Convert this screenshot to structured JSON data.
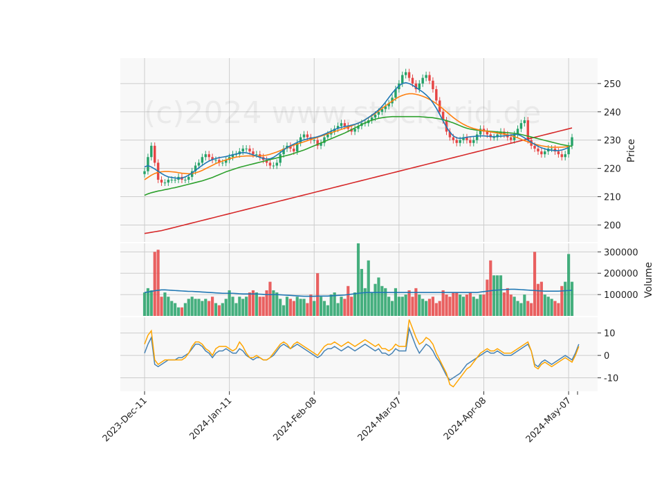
{
  "chart_data": {
    "type": "candlestick",
    "watermark": "(c)2024 www.stockgrid.de",
    "x_ticks": [
      "2023-Dec-11",
      "2024-Jan-11",
      "2024-Feb-08",
      "2024-Mar-07",
      "2024-Apr-08",
      "2024-May-07"
    ],
    "colors": {
      "up": "#26a269",
      "down": "#e64545",
      "ma_fast": "#1f77b4",
      "ma_mid": "#ff7f0e",
      "ma_slow": "#2ca02c",
      "ma_long": "#d62728",
      "vol_ma": "#1f77b4",
      "osc_a": "#4682b4",
      "osc_b": "#ffa500",
      "panel_bg": "#f8f8f8",
      "grid": "#cccccc"
    },
    "price_panel": {
      "ylabel": "Price",
      "yticks": [
        200,
        210,
        220,
        230,
        240,
        250
      ],
      "ylim": [
        194,
        259
      ],
      "close": [
        219,
        224,
        228,
        222,
        216,
        215,
        215,
        216,
        216,
        216,
        217,
        216,
        216,
        217,
        219,
        221,
        222,
        224,
        225,
        224,
        223,
        223,
        222,
        222,
        223,
        224,
        225,
        225,
        226,
        227,
        227,
        226,
        225,
        225,
        224,
        223,
        222,
        221,
        221,
        222,
        225,
        227,
        228,
        227,
        226,
        229,
        231,
        232,
        231,
        230,
        230,
        228,
        229,
        231,
        232,
        233,
        234,
        235,
        236,
        235,
        234,
        233,
        234,
        235,
        236,
        236,
        237,
        238,
        239,
        240,
        241,
        242,
        243,
        245,
        248,
        250,
        253,
        254,
        252,
        250,
        248,
        250,
        252,
        253,
        251,
        248,
        244,
        240,
        237,
        233,
        231,
        230,
        229,
        230,
        231,
        230,
        229,
        230,
        232,
        234,
        233,
        232,
        231,
        231,
        232,
        233,
        232,
        231,
        230,
        232,
        234,
        236,
        237,
        230,
        228,
        227,
        226,
        225,
        226,
        227,
        227,
        226,
        225,
        224,
        225,
        228,
        231
      ],
      "ma_fast": [
        220.5,
        221,
        220.5,
        219.8,
        219,
        218.2,
        217.5,
        217,
        216.8,
        216.6,
        216.5,
        216.6,
        217,
        217.6,
        218.4,
        219.3,
        220.2,
        221.1,
        221.9,
        222.6,
        223.1,
        223.5,
        223.8,
        224,
        224.2,
        224.5,
        224.8,
        225.1,
        225.4,
        225.6,
        225.5,
        225.2,
        224.8,
        224.4,
        223.9,
        223.5,
        223.3,
        223.4,
        223.9,
        224.7,
        225.6,
        226.5,
        227.4,
        228,
        228.6,
        229.2,
        229.7,
        230.1,
        230.4,
        230.7,
        230.9,
        231.2,
        231.6,
        232.1,
        232.6,
        233.2,
        233.7,
        234.2,
        234.5,
        234.8,
        235,
        235.3,
        235.6,
        236,
        236.5,
        237.2,
        238,
        238.8,
        239.7,
        240.7,
        241.9,
        243.4,
        245,
        246.6,
        248,
        249.2,
        250,
        250.3,
        250,
        249.4,
        248.6,
        247.8,
        247,
        246,
        244.8,
        243.2,
        241.3,
        239.1,
        236.8,
        234.6,
        232.8,
        231.5,
        230.8,
        230.6,
        230.8,
        231,
        231.2,
        231.3,
        231.4,
        231.5,
        231.5,
        231.4,
        231.3,
        231.2,
        231.3,
        231.4,
        231.5,
        231.6,
        231.8,
        232,
        232,
        231.5,
        230.8,
        230,
        229.2,
        228.5,
        227.8,
        227.3,
        226.9,
        226.6,
        226.4,
        226.3,
        226.3,
        226.5,
        226.9,
        227.4
      ],
      "ma_mid": [
        216,
        216.8,
        217.6,
        218.2,
        218.6,
        218.8,
        218.9,
        218.9,
        218.8,
        218.7,
        218.5,
        218.3,
        218.2,
        218.1,
        218.2,
        218.4,
        218.8,
        219.3,
        219.9,
        220.5,
        221.1,
        221.7,
        222.2,
        222.6,
        223,
        223.4,
        223.7,
        224,
        224.2,
        224.3,
        224.4,
        224.4,
        224.4,
        224.4,
        224.4,
        224.5,
        224.7,
        225,
        225.4,
        225.8,
        226.3,
        226.8,
        227.3,
        227.8,
        228.2,
        228.6,
        229,
        229.4,
        229.8,
        230.2,
        230.6,
        231,
        231.4,
        231.8,
        232.2,
        232.6,
        233,
        233.4,
        233.8,
        234.2,
        234.6,
        235,
        235.5,
        236,
        236.6,
        237.2,
        237.9,
        238.6,
        239.4,
        240.3,
        241.2,
        242.1,
        243,
        243.8,
        244.6,
        245.3,
        245.8,
        246.2,
        246.4,
        246.4,
        246.2,
        245.9,
        245.5,
        245,
        244.4,
        243.7,
        242.9,
        242,
        241,
        240,
        239,
        238,
        237.1,
        236.3,
        235.6,
        235,
        234.5,
        234.1,
        233.8,
        233.5,
        233.3,
        233.1,
        232.9,
        232.7,
        232.5,
        232.3,
        232.1,
        231.9,
        231.6,
        231.2,
        230.8,
        230.3,
        229.8,
        229.4,
        229,
        228.6,
        228.3,
        228,
        227.8,
        227.6,
        227.5,
        227.5,
        227.5,
        227.5,
        227.6,
        227.7
      ],
      "ma_slow": [
        210.5,
        211,
        211.4,
        211.7,
        212,
        212.2,
        212.5,
        212.7,
        213,
        213.2,
        213.5,
        213.8,
        214.1,
        214.4,
        214.7,
        215,
        215.3,
        215.6,
        216,
        216.4,
        216.8,
        217.3,
        217.8,
        218.3,
        218.8,
        219.2,
        219.6,
        220,
        220.4,
        220.7,
        221,
        221.3,
        221.6,
        221.9,
        222.2,
        222.5,
        222.8,
        223.1,
        223.4,
        223.7,
        224,
        224.3,
        224.6,
        224.9,
        225.3,
        225.7,
        226.1,
        226.5,
        227,
        227.5,
        228,
        228.5,
        229,
        229.5,
        230,
        230.5,
        231,
        231.5,
        232,
        232.5,
        233.1,
        233.7,
        234.3,
        234.9,
        235.5,
        236.1,
        236.6,
        237,
        237.4,
        237.7,
        237.9,
        238.1,
        238.2,
        238.3,
        238.3,
        238.3,
        238.3,
        238.3,
        238.3,
        238.3,
        238.3,
        238.3,
        238.2,
        238.1,
        238,
        237.9,
        237.7,
        237.5,
        237.2,
        236.9,
        236.5,
        236.1,
        235.6,
        235.1,
        234.6,
        234.2,
        233.9,
        233.7,
        233.5,
        233.4,
        233.3,
        233.2,
        233.1,
        233,
        232.9,
        232.8,
        232.7,
        232.6,
        232.5,
        232.4,
        232.2,
        232,
        231.7,
        231.4,
        231.1,
        230.8,
        230.5,
        230.2,
        229.9,
        229.6,
        229.3,
        229,
        228.7,
        228.4,
        228.2,
        228,
        227.8
      ],
      "ma_long": [
        197,
        197.2,
        197.4,
        197.6,
        197.8,
        198,
        198.3,
        198.6,
        198.9,
        199.2,
        199.5,
        199.8,
        200.1,
        200.4,
        200.7,
        201,
        201.3,
        201.6,
        201.9,
        202.2,
        202.5,
        202.8,
        203.1,
        203.4,
        203.7,
        204,
        204.3,
        204.6,
        204.9,
        205.2,
        205.5,
        205.8,
        206.1,
        206.4,
        206.7,
        207,
        207.3,
        207.6,
        207.9,
        208.2,
        208.5,
        208.8,
        209.1,
        209.4,
        209.7,
        210,
        210.3,
        210.6,
        210.9,
        211.2,
        211.5,
        211.8,
        212.1,
        212.4,
        212.7,
        213,
        213.3,
        213.6,
        213.9,
        214.2,
        214.5,
        214.8,
        215.1,
        215.4,
        215.7,
        216,
        216.3,
        216.6,
        216.9,
        217.2,
        217.5,
        217.8,
        218.1,
        218.4,
        218.7,
        219,
        219.3,
        219.6,
        219.9,
        220.2,
        220.5,
        220.8,
        221.1,
        221.4,
        221.7,
        222,
        222.3,
        222.6,
        222.9,
        223.2,
        223.5,
        223.8,
        224.1,
        224.4,
        224.7,
        225,
        225.3,
        225.6,
        225.9,
        226.2,
        226.5,
        226.8,
        227.1,
        227.4,
        227.7,
        228,
        228.3,
        228.6,
        228.9,
        229.2,
        229.5,
        229.8,
        230.1,
        230.4,
        230.7,
        231,
        231.3,
        231.6,
        231.9,
        232.2,
        232.5,
        232.8,
        233.1,
        233.4,
        233.7,
        234,
        234.3
      ]
    },
    "volume_panel": {
      "ylabel": "Volume",
      "yticks": [
        100000,
        200000,
        300000
      ],
      "ytick_labels": [
        "100000",
        "200000",
        "300000"
      ],
      "ylim": [
        0,
        340000
      ],
      "values": [
        110000,
        130000,
        120000,
        300000,
        310000,
        90000,
        110000,
        90000,
        70000,
        60000,
        40000,
        40000,
        60000,
        80000,
        90000,
        80000,
        80000,
        70000,
        80000,
        70000,
        90000,
        60000,
        50000,
        60000,
        80000,
        120000,
        90000,
        60000,
        90000,
        80000,
        90000,
        110000,
        120000,
        110000,
        90000,
        90000,
        120000,
        160000,
        120000,
        110000,
        80000,
        50000,
        90000,
        80000,
        70000,
        90000,
        80000,
        80000,
        60000,
        100000,
        70000,
        200000,
        90000,
        70000,
        50000,
        100000,
        110000,
        60000,
        90000,
        80000,
        140000,
        90000,
        110000,
        340000,
        220000,
        130000,
        260000,
        110000,
        150000,
        180000,
        140000,
        130000,
        90000,
        70000,
        130000,
        90000,
        90000,
        100000,
        120000,
        90000,
        130000,
        100000,
        80000,
        70000,
        80000,
        90000,
        60000,
        70000,
        120000,
        100000,
        90000,
        110000,
        110000,
        100000,
        90000,
        100000,
        110000,
        90000,
        80000,
        100000,
        100000,
        170000,
        260000,
        190000,
        190000,
        190000,
        110000,
        130000,
        100000,
        90000,
        70000,
        60000,
        100000,
        70000,
        60000,
        300000,
        150000,
        160000,
        100000,
        90000,
        80000,
        70000,
        60000,
        140000,
        160000,
        290000,
        160000
      ],
      "ma": [
        110000,
        112000,
        115000,
        118000,
        120000,
        122000,
        122000,
        121000,
        120000,
        119000,
        118000,
        117000,
        116000,
        115000,
        115000,
        114000,
        113000,
        112000,
        111000,
        110000,
        109000,
        108000,
        107000,
        106000,
        106000,
        106000,
        106000,
        105000,
        104000,
        103000,
        103000,
        103000,
        103000,
        103000,
        102000,
        101000,
        100000,
        100000,
        100000,
        100000,
        99000,
        98000,
        97000,
        96000,
        95000,
        94000,
        93000,
        92000,
        92000,
        92000,
        92000,
        93000,
        93000,
        93000,
        93000,
        94000,
        95000,
        96000,
        97000,
        98000,
        100000,
        102000,
        104000,
        106000,
        108000,
        109000,
        110000,
        110000,
        110000,
        110000,
        110000,
        110000,
        110000,
        110000,
        110000,
        110000,
        110000,
        110000,
        110000,
        110000,
        110000,
        110000,
        110000,
        110000,
        110000,
        110000,
        110000,
        110000,
        110000,
        110000,
        110000,
        110000,
        110000,
        110000,
        110000,
        110000,
        110000,
        110000,
        110000,
        112000,
        114000,
        116000,
        118000,
        120000,
        121000,
        122000,
        123000,
        124000,
        125000,
        125000,
        124000,
        123000,
        122000,
        121000,
        120000,
        119000,
        118000,
        117000,
        116000,
        116000,
        116000,
        116000,
        116000,
        117000,
        118000,
        119000,
        120000
      ]
    },
    "oscillator_panel": {
      "ylabel": "",
      "yticks": [
        -10,
        0,
        10
      ],
      "ylim": [
        -16,
        17
      ],
      "series_a": [
        1,
        5,
        8,
        -4,
        -5,
        -4,
        -3,
        -2,
        -2,
        -2,
        -1,
        -1,
        0,
        1,
        3,
        5,
        5,
        4,
        2,
        1,
        -1,
        1,
        2,
        2,
        3,
        2,
        1,
        1,
        3,
        2,
        0,
        -1,
        -2,
        -1,
        -1,
        -2,
        -2,
        -1,
        0,
        2,
        4,
        5,
        4,
        3,
        4,
        5,
        4,
        3,
        2,
        1,
        0,
        -1,
        0,
        2,
        3,
        3,
        4,
        3,
        2,
        3,
        4,
        3,
        2,
        3,
        4,
        5,
        4,
        3,
        2,
        3,
        1,
        1,
        0,
        1,
        3,
        2,
        2,
        2,
        12,
        8,
        4,
        1,
        3,
        5,
        4,
        2,
        -1,
        -3,
        -6,
        -9,
        -11,
        -10,
        -9,
        -8,
        -6,
        -4,
        -3,
        -2,
        -1,
        0,
        1,
        2,
        1,
        1,
        2,
        1,
        0,
        0,
        0,
        1,
        2,
        3,
        4,
        5,
        2,
        -4,
        -5,
        -3,
        -2,
        -3,
        -4,
        -3,
        -2,
        -1,
        0,
        -1,
        -2,
        1,
        5
      ],
      "series_b": [
        5,
        9,
        11,
        -2,
        -4,
        -3,
        -2,
        -2,
        -2,
        -2,
        -2,
        -2,
        -1,
        1,
        4,
        6,
        6,
        5,
        3,
        2,
        0,
        3,
        4,
        4,
        4,
        3,
        2,
        3,
        6,
        4,
        1,
        -1,
        -1,
        0,
        -1,
        -2,
        -2,
        -1,
        1,
        3,
        5,
        6,
        5,
        3,
        5,
        6,
        5,
        4,
        3,
        2,
        1,
        0,
        2,
        4,
        5,
        5,
        6,
        5,
        4,
        5,
        6,
        5,
        4,
        5,
        6,
        7,
        6,
        5,
        4,
        5,
        3,
        3,
        2,
        3,
        5,
        4,
        4,
        4,
        16,
        12,
        8,
        5,
        6,
        8,
        7,
        5,
        1,
        -2,
        -5,
        -8,
        -13,
        -14,
        -12,
        -10,
        -8,
        -6,
        -5,
        -3,
        -1,
        1,
        2,
        3,
        2,
        2,
        3,
        2,
        1,
        1,
        1,
        2,
        3,
        4,
        5,
        6,
        2,
        -5,
        -6,
        -4,
        -3,
        -4,
        -5,
        -4,
        -3,
        -2,
        -1,
        -2,
        -3,
        0,
        4
      ]
    }
  }
}
